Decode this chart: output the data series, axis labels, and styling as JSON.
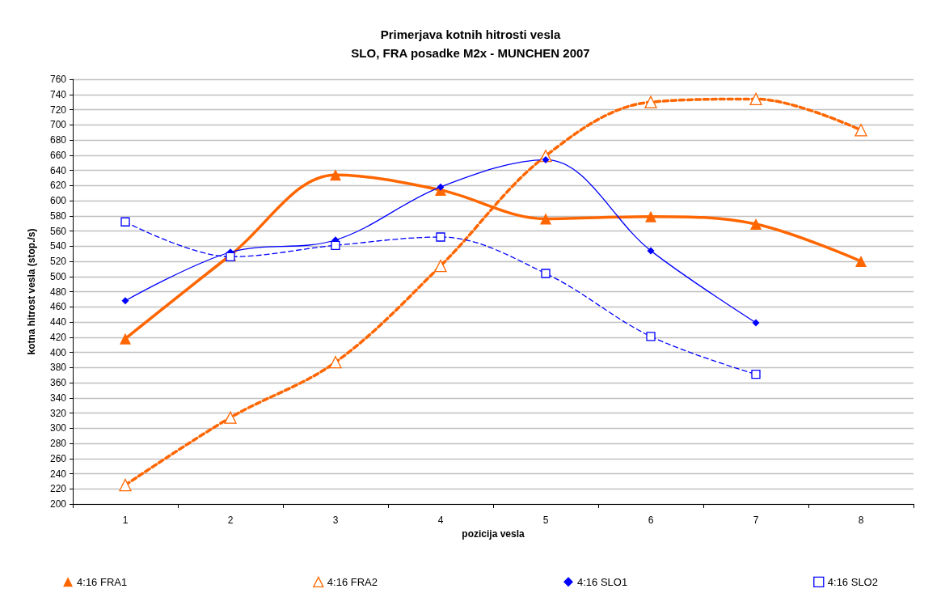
{
  "chart_data": {
    "type": "line",
    "title": "Primerjava kotnih hitrosti vesla",
    "subtitle": "SLO, FRA posadke M2x - MUNCHEN 2007",
    "xlabel": "pozicija vesla",
    "ylabel": "kotna hitrost vesla (stop./s)",
    "categories": [
      "1",
      "2",
      "3",
      "4",
      "5",
      "6",
      "7",
      "8"
    ],
    "series": [
      {
        "name": "4:16 FRA1",
        "color": "#ff6600",
        "marker": "triangle",
        "line_style": "solid",
        "values": [
          418,
          528,
          634,
          614,
          576,
          579,
          569,
          520
        ]
      },
      {
        "name": "4:16 FRA2",
        "color": "#ff6600",
        "marker": "triangle",
        "line_style": "dashed",
        "values": [
          225,
          314,
          387,
          514,
          659,
          730,
          734,
          693
        ]
      },
      {
        "name": "4:16 SLO1",
        "color": "#0000ff",
        "marker": "diamond",
        "line_style": "solid",
        "values": [
          468,
          532,
          548,
          618,
          654,
          534,
          439,
          null
        ]
      },
      {
        "name": "4:16 SLO2",
        "color": "#0000ff",
        "marker": "square",
        "line_style": "dashed",
        "values": [
          572,
          526,
          541,
          552,
          504,
          421,
          371,
          null
        ]
      }
    ],
    "ylim": [
      200,
      760
    ],
    "yticks": [
      200,
      220,
      240,
      260,
      280,
      300,
      320,
      340,
      360,
      380,
      400,
      420,
      440,
      460,
      480,
      500,
      520,
      540,
      560,
      580,
      600,
      620,
      640,
      660,
      680,
      700,
      720,
      740,
      760
    ],
    "grid": "y",
    "legend": "bottom"
  }
}
